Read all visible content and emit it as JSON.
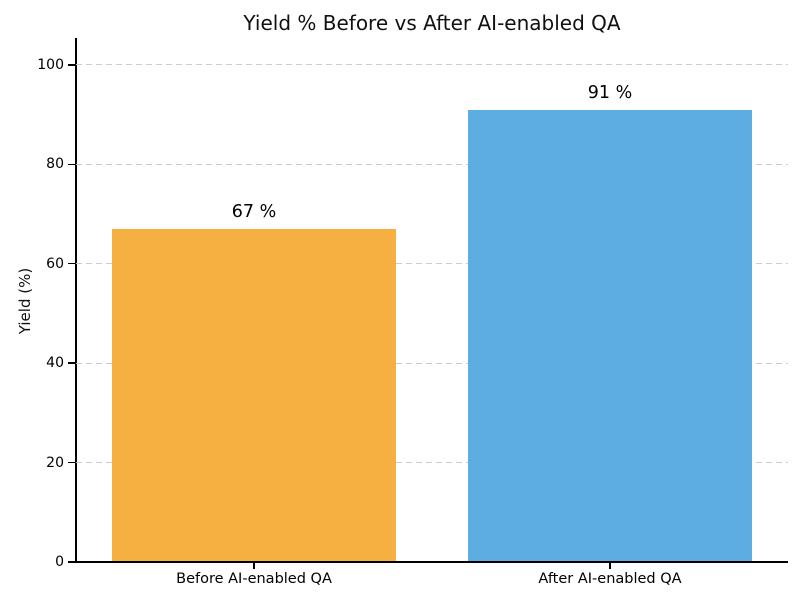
{
  "chart_data": {
    "type": "bar",
    "title": "Yield % Before vs After AI-enabled QA",
    "xlabel": "",
    "ylabel": "Yield (%)",
    "categories": [
      "Before AI-enabled QA",
      "After AI-enabled QA"
    ],
    "values": [
      67,
      91
    ],
    "value_labels": [
      "67 %",
      "91 %"
    ],
    "bar_colors": [
      "#F5B041",
      "#5DADE2"
    ],
    "yticks": [
      0,
      20,
      40,
      60,
      80,
      100
    ],
    "ylim": [
      0,
      105
    ],
    "bar_width_fraction_of_slot": 0.8,
    "grid": {
      "axis": "y",
      "style": "dashed",
      "color": "#cccccc",
      "axisbelow": true
    },
    "legend_position": "none",
    "background_color": "#ffffff",
    "axis_color": "#000000"
  }
}
